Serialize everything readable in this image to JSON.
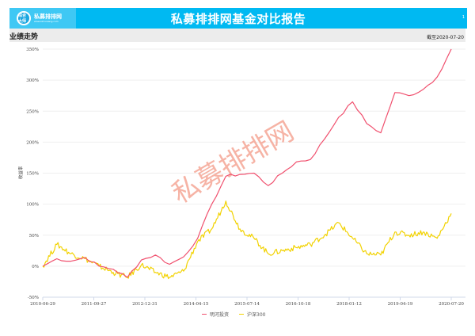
{
  "header": {
    "logo_badge": "综合大师",
    "logo_name": "私募排排网",
    "logo_url_text": "www.simuwang.com",
    "title": "私募排排网基金对比报告",
    "page_number": "1"
  },
  "section": {
    "title": "业绩走势",
    "as_of": "截至2020-07-20"
  },
  "watermark": "私募排排网",
  "colors": {
    "header": "#00b9f2",
    "fund_line": "#f0506e",
    "index_line": "#f2d200",
    "watermark": "#f4a08f"
  },
  "chart_data": {
    "type": "line",
    "title": "业绩走势",
    "xlabel": "",
    "ylabel": "收益率",
    "ylim": [
      -50,
      350
    ],
    "yticks": [
      "350%",
      "300%",
      "250%",
      "200%",
      "150%",
      "100%",
      "50%",
      "0%",
      "-50%"
    ],
    "xticks": [
      "2010-06-29",
      "2011-09-27",
      "2012-12-31",
      "2014-04-15",
      "2015-07-14",
      "2016-10-18",
      "2018-01-12",
      "2019-04-19",
      "2020-07-20"
    ],
    "grid": true,
    "legend_position": "bottom",
    "x": [
      "2010-06-29",
      "2010-12",
      "2011-06",
      "2011-09-27",
      "2012-03",
      "2012-09",
      "2012-12-31",
      "2013-06",
      "2013-12",
      "2014-04-15",
      "2014-09",
      "2014-12",
      "2015-03",
      "2015-06",
      "2015-07-14",
      "2015-09",
      "2016-01",
      "2016-05",
      "2016-10-18",
      "2017-03",
      "2017-08",
      "2018-01-12",
      "2018-06",
      "2018-10",
      "2019-01",
      "2019-04-19",
      "2019-08",
      "2019-12",
      "2020-04",
      "2020-07-20"
    ],
    "series": [
      {
        "name": "明河投资",
        "values": [
          0,
          12,
          8,
          14,
          0,
          -5,
          -18,
          10,
          18,
          3,
          15,
          45,
          100,
          145,
          148,
          150,
          130,
          150,
          168,
          172,
          205,
          240,
          265,
          230,
          215,
          280,
          275,
          285,
          305,
          350
        ]
      },
      {
        "name": "沪深300",
        "values": [
          0,
          35,
          20,
          12,
          0,
          -10,
          -18,
          2,
          -10,
          -18,
          -8,
          40,
          60,
          105,
          60,
          45,
          20,
          25,
          30,
          35,
          50,
          70,
          45,
          20,
          18,
          55,
          50,
          55,
          45,
          85
        ]
      }
    ]
  },
  "legend": [
    {
      "label": "明河投资",
      "color": "#f0506e"
    },
    {
      "label": "沪深300",
      "color": "#f2d200"
    }
  ]
}
